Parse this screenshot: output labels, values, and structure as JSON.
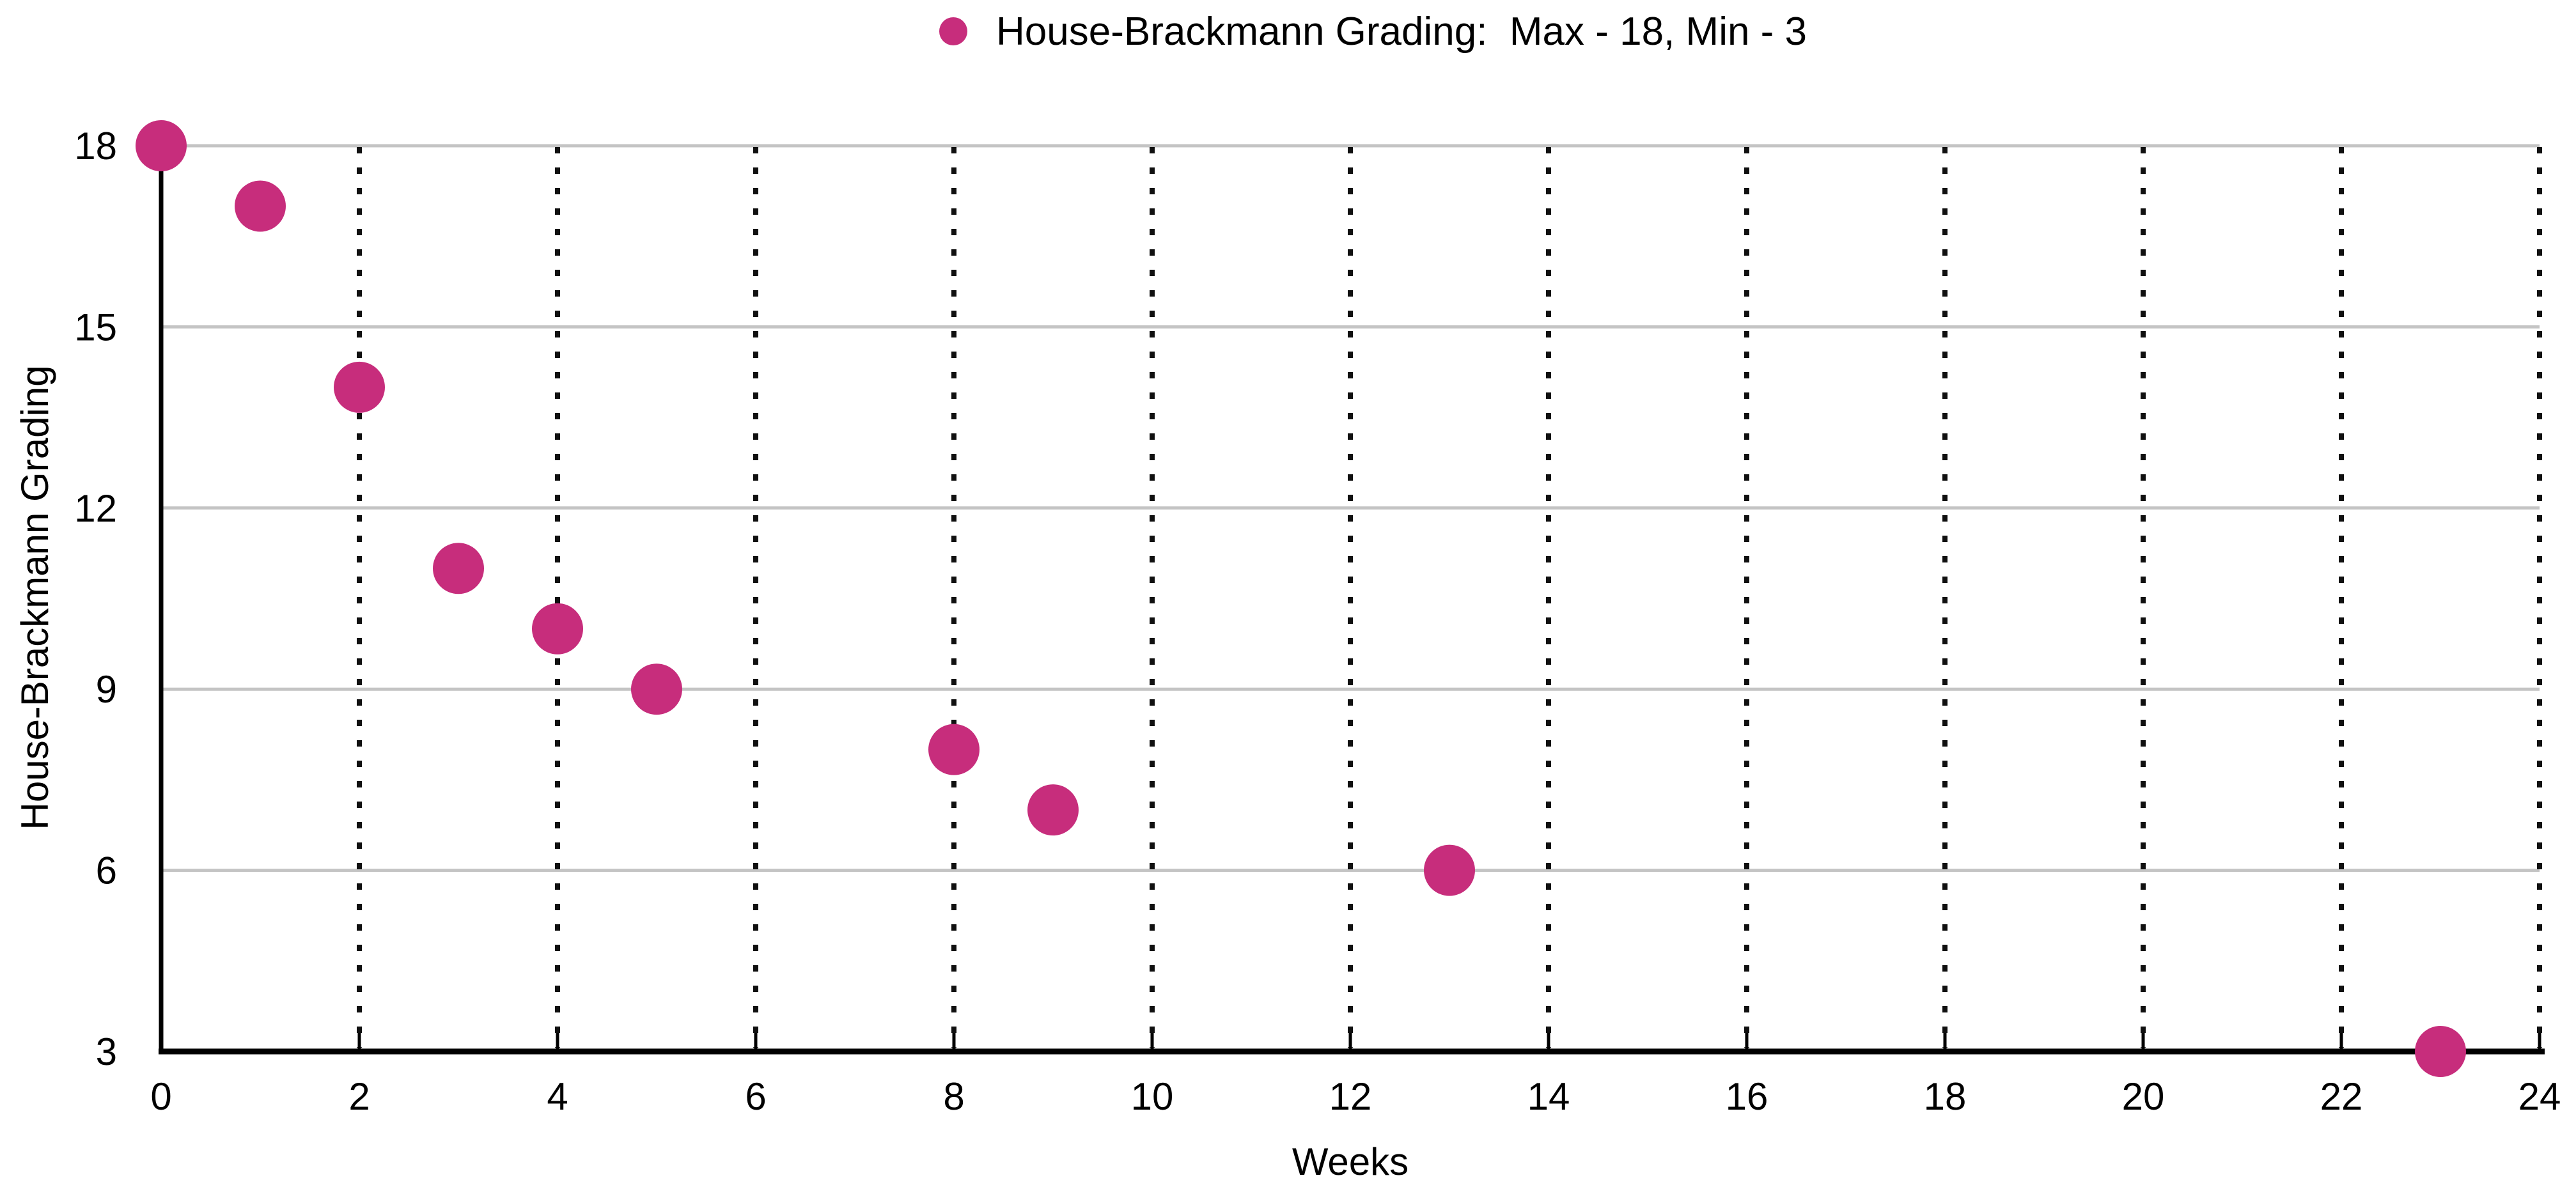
{
  "chart_data": {
    "type": "scatter",
    "title": "House-Brackmann Grading:  Max - 18, Min - 3",
    "xlabel": "Weeks",
    "ylabel": "House-Brackmann Grading",
    "series": [
      {
        "name": "House-Brackmann Grading",
        "max": 18,
        "min": 3,
        "color": "#c72d7c",
        "points": [
          [
            0,
            18
          ],
          [
            1,
            17
          ],
          [
            2,
            14
          ],
          [
            3,
            11
          ],
          [
            4,
            10
          ],
          [
            5,
            9
          ],
          [
            8,
            8
          ],
          [
            9,
            7
          ],
          [
            13,
            6
          ],
          [
            23,
            3
          ]
        ]
      }
    ],
    "x_ticks": [
      0,
      2,
      4,
      6,
      8,
      10,
      12,
      14,
      16,
      18,
      20,
      22,
      24
    ],
    "y_ticks": [
      3,
      6,
      9,
      12,
      15,
      18
    ],
    "xlim": [
      0,
      24
    ],
    "ylim": [
      3,
      18
    ],
    "legend_position": "top-center",
    "grid": {
      "horizontal": "solid light gray",
      "vertical": "dotted black"
    }
  },
  "colors": {
    "marker": "#c72d7c",
    "axis": "#000000",
    "gridline_horizontal": "#c4c4c4",
    "gridline_vertical": "#101010",
    "text": "#000000",
    "background": "#ffffff"
  }
}
